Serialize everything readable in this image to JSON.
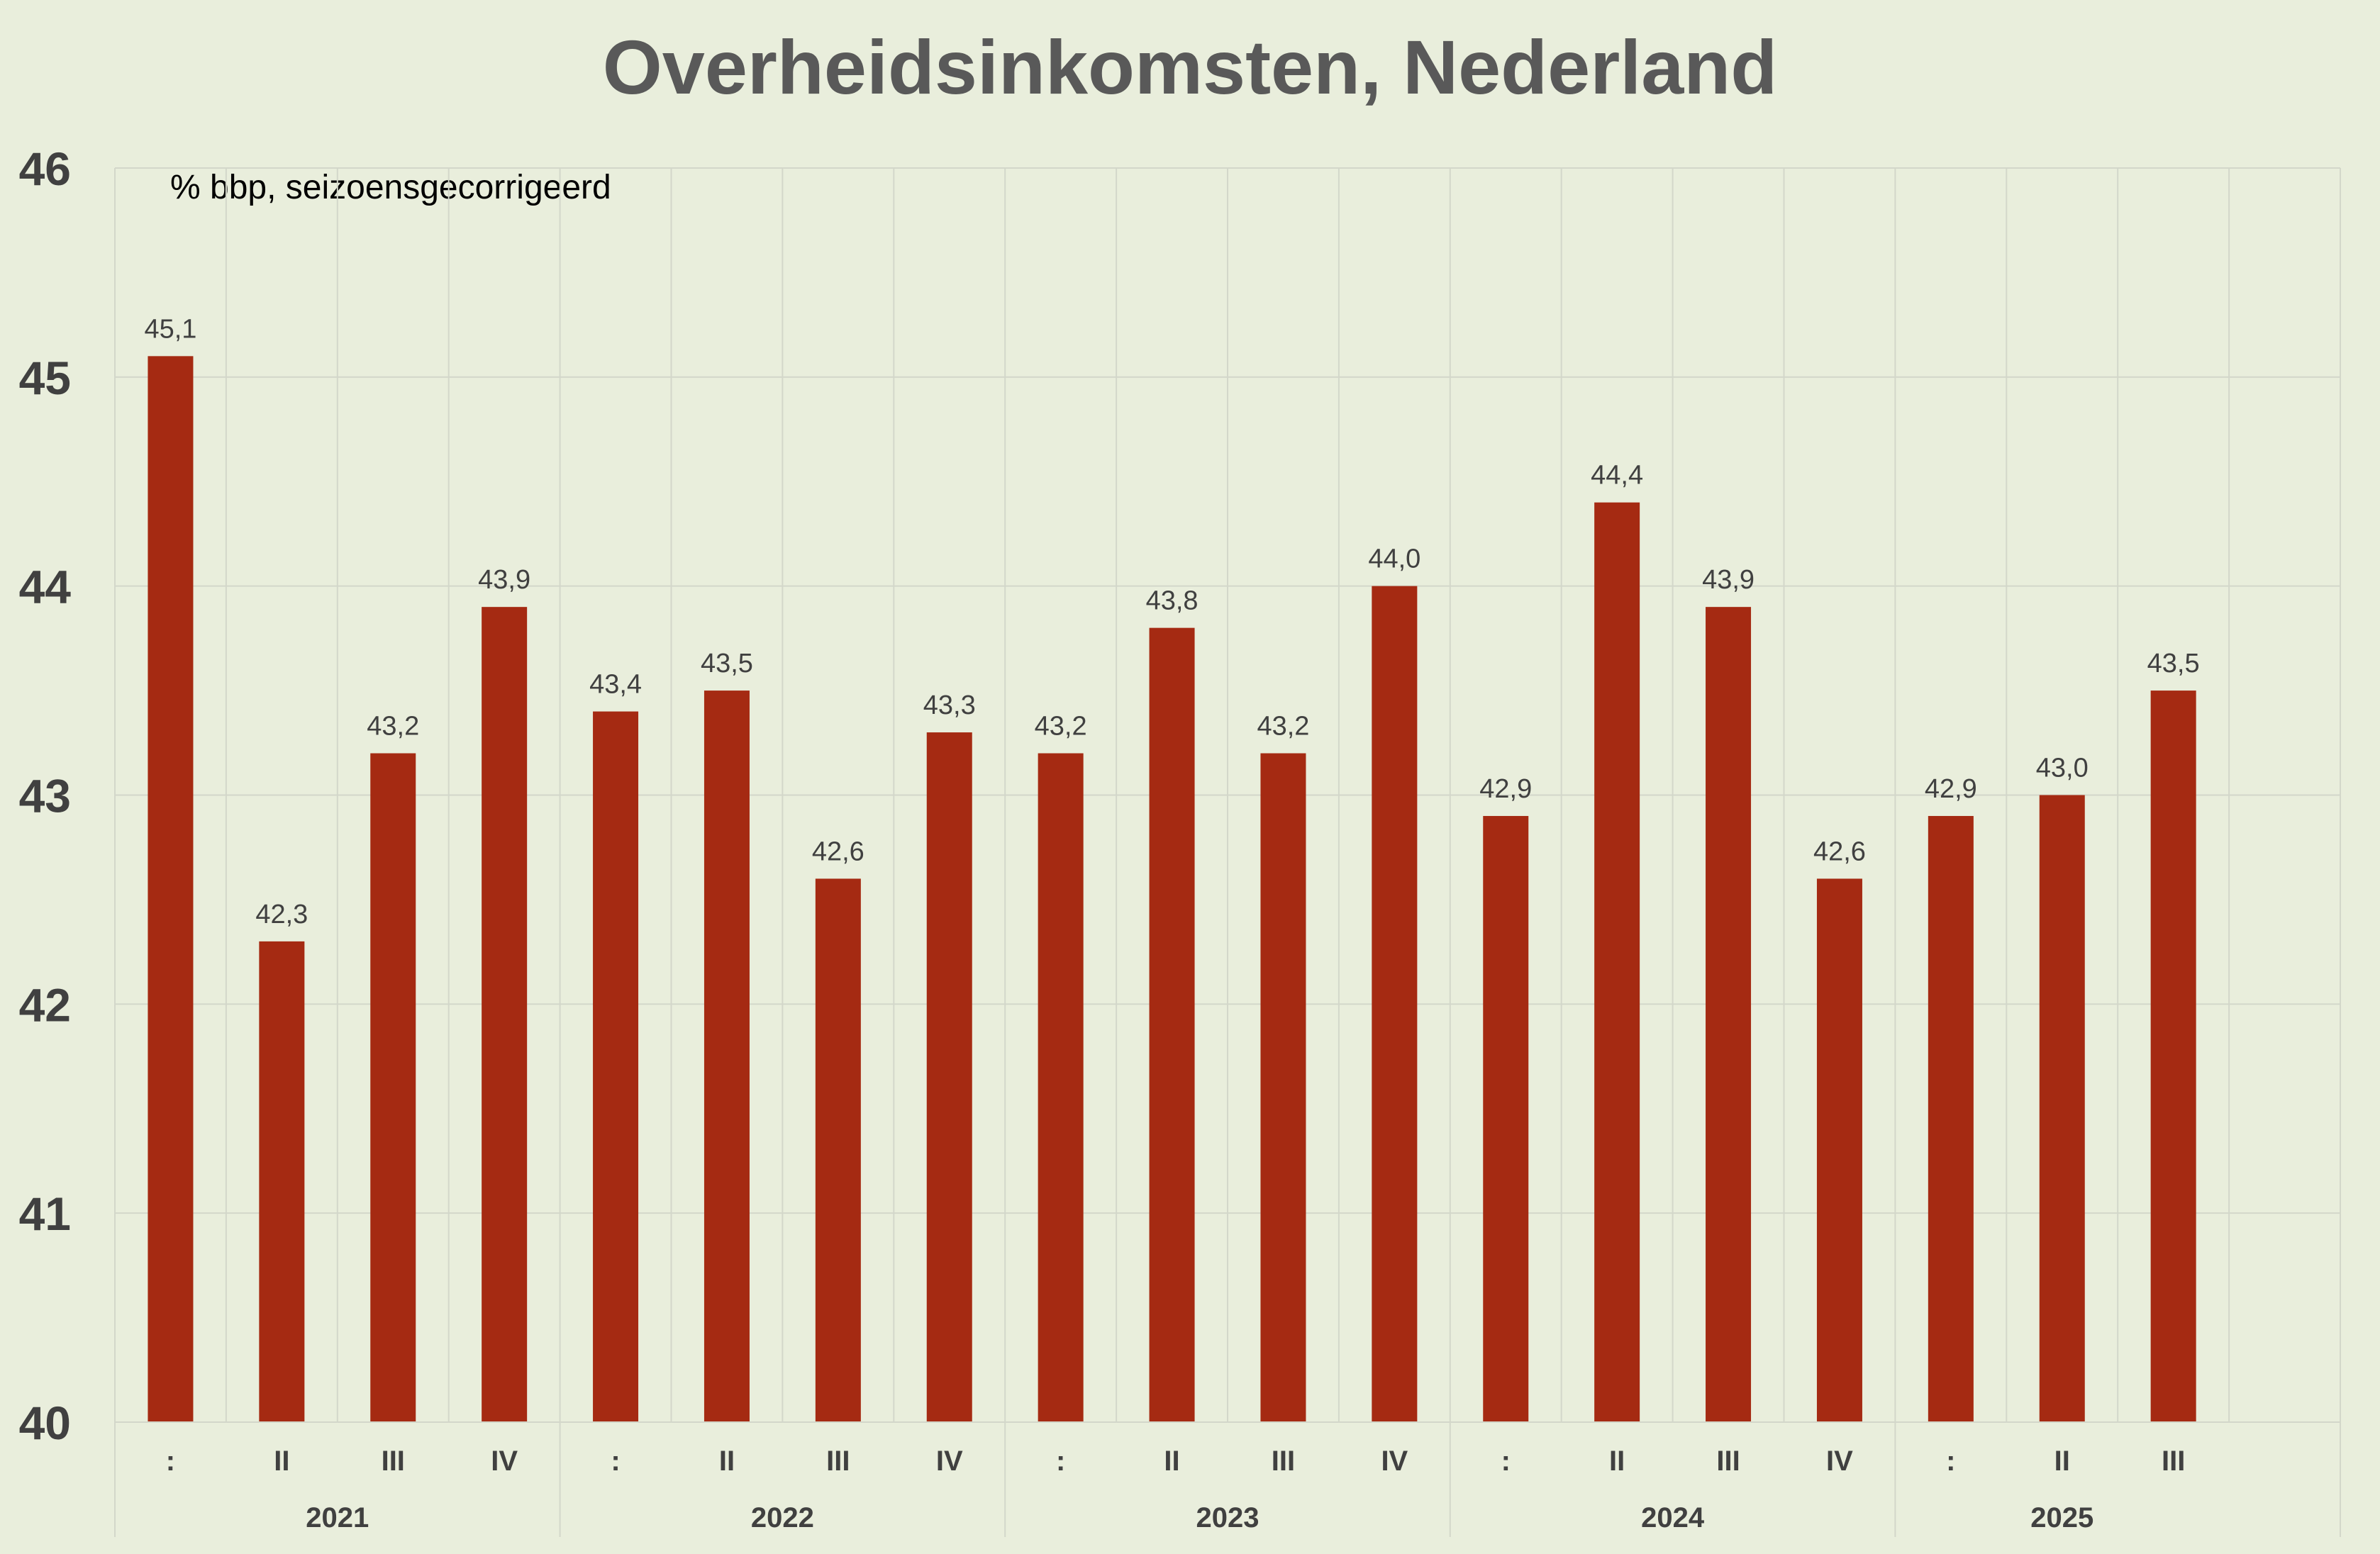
{
  "chart_data": {
    "type": "bar",
    "title": "Overheidsinkomsten, Nederland",
    "subtitle": "% bbp, seizoensgecorrigeerd",
    "ylim": [
      40,
      46
    ],
    "yticks": [
      40,
      41,
      42,
      43,
      44,
      45,
      46
    ],
    "grid": true,
    "categories": [
      "I",
      "II",
      "III",
      "IV",
      "I",
      "II",
      "III",
      "IV",
      "I",
      "II",
      "III",
      "IV",
      "I",
      "II",
      "III",
      "IV",
      "I",
      "II",
      "III"
    ],
    "category_labels": [
      ":",
      "II",
      "III",
      "IV",
      ":",
      "II",
      "III",
      "IV",
      ":",
      "II",
      "III",
      "IV",
      ":",
      "II",
      "III",
      "IV",
      ":",
      "II",
      "III"
    ],
    "groups": [
      {
        "label": "2021",
        "count": 4
      },
      {
        "label": "2022",
        "count": 4
      },
      {
        "label": "2023",
        "count": 4
      },
      {
        "label": "2024",
        "count": 4
      },
      {
        "label": "2025",
        "count": 3
      }
    ],
    "total_slots": 20,
    "values": [
      45.1,
      42.3,
      43.2,
      43.9,
      43.4,
      43.5,
      42.6,
      43.3,
      43.2,
      43.8,
      43.2,
      44.0,
      42.9,
      44.4,
      43.9,
      42.6,
      42.9,
      43.0,
      43.5
    ],
    "data_labels": [
      "45,1",
      "42,3",
      "43,2",
      "43,9",
      "43,4",
      "43,5",
      "42,6",
      "43,3",
      "43,2",
      "43,8",
      "43,2",
      "44,0",
      "42,9",
      "44,4",
      "43,9",
      "42,6",
      "42,9",
      "43,0",
      "43,5"
    ],
    "colors": {
      "bar": "#a52a12",
      "background": "#e9eedc",
      "grid": "#d3d7ca",
      "title": "#595959",
      "axis_text": "#404040",
      "label_text": "#404040"
    }
  }
}
